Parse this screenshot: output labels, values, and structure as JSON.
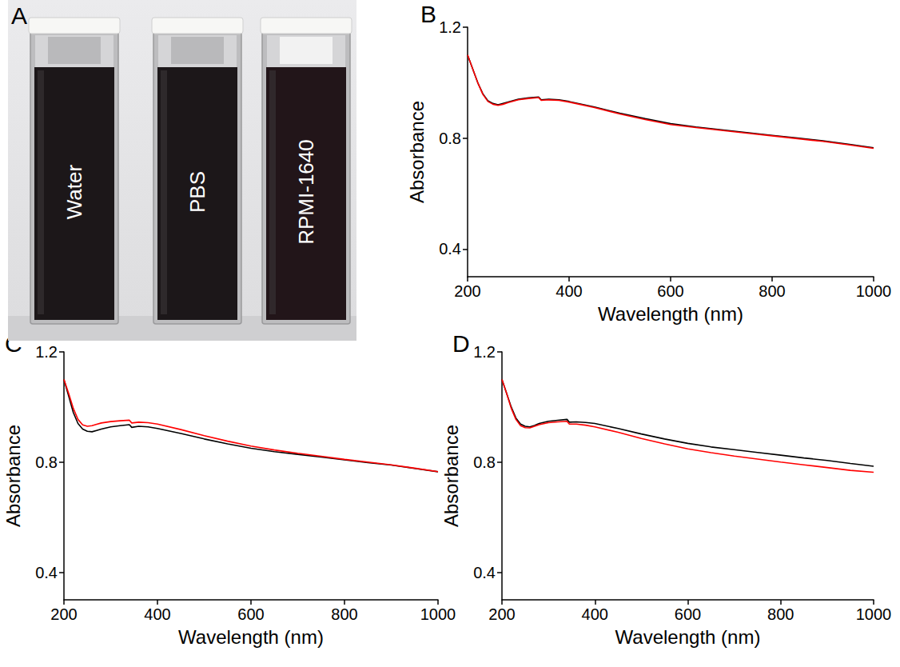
{
  "photo": {
    "panel_label": "A",
    "labels": [
      "Water",
      "PBS",
      "RPMI-1640"
    ]
  },
  "chart_data": [
    {
      "panel_label": "B",
      "type": "line",
      "x_label": "Wavelength (nm)",
      "y_label": "Absorbance",
      "x": [
        200,
        210,
        220,
        230,
        240,
        250,
        260,
        270,
        280,
        300,
        320,
        340,
        345,
        360,
        380,
        400,
        450,
        500,
        550,
        600,
        650,
        700,
        750,
        800,
        850,
        900,
        950,
        1000
      ],
      "xlim": [
        200,
        1000
      ],
      "xticks": [
        200,
        400,
        600,
        800,
        1000
      ],
      "ylim": [
        0.3,
        1.2
      ],
      "yticks": [
        0.4,
        0.8,
        1.2
      ],
      "grid": false,
      "series": [
        {
          "color": "#000000",
          "values": [
            1.1,
            1.05,
            1.0,
            0.96,
            0.935,
            0.925,
            0.92,
            0.925,
            0.93,
            0.94,
            0.945,
            0.948,
            0.938,
            0.94,
            0.938,
            0.932,
            0.912,
            0.89,
            0.87,
            0.852,
            0.84,
            0.83,
            0.82,
            0.81,
            0.8,
            0.79,
            0.778,
            0.765
          ]
        },
        {
          "color": "#ff0000",
          "values": [
            1.1,
            1.05,
            1.0,
            0.958,
            0.932,
            0.922,
            0.918,
            0.922,
            0.928,
            0.938,
            0.943,
            0.946,
            0.936,
            0.938,
            0.936,
            0.93,
            0.91,
            0.887,
            0.867,
            0.849,
            0.838,
            0.828,
            0.818,
            0.808,
            0.798,
            0.788,
            0.776,
            0.763
          ]
        }
      ]
    },
    {
      "panel_label": "C",
      "type": "line",
      "x_label": "Wavelength (nm)",
      "y_label": "Absorbance",
      "x": [
        200,
        210,
        220,
        230,
        240,
        250,
        260,
        270,
        280,
        300,
        320,
        340,
        345,
        360,
        380,
        400,
        450,
        500,
        550,
        600,
        650,
        700,
        750,
        800,
        850,
        900,
        950,
        1000
      ],
      "xlim": [
        200,
        1000
      ],
      "xticks": [
        200,
        400,
        600,
        800,
        1000
      ],
      "ylim": [
        0.3,
        1.2
      ],
      "yticks": [
        0.4,
        0.8,
        1.2
      ],
      "grid": false,
      "series": [
        {
          "color": "#000000",
          "values": [
            1.1,
            1.04,
            0.98,
            0.94,
            0.92,
            0.912,
            0.91,
            0.915,
            0.92,
            0.928,
            0.932,
            0.936,
            0.926,
            0.93,
            0.928,
            0.922,
            0.904,
            0.884,
            0.866,
            0.85,
            0.838,
            0.828,
            0.818,
            0.808,
            0.798,
            0.789,
            0.777,
            0.765
          ]
        },
        {
          "color": "#ff0000",
          "values": [
            1.1,
            1.05,
            0.995,
            0.955,
            0.935,
            0.93,
            0.932,
            0.937,
            0.942,
            0.947,
            0.95,
            0.952,
            0.942,
            0.945,
            0.943,
            0.938,
            0.918,
            0.896,
            0.876,
            0.858,
            0.844,
            0.832,
            0.821,
            0.81,
            0.8,
            0.79,
            0.778,
            0.765
          ]
        }
      ]
    },
    {
      "panel_label": "D",
      "type": "line",
      "x_label": "Wavelength (nm)",
      "y_label": "Absorbance",
      "x": [
        200,
        210,
        220,
        230,
        240,
        250,
        260,
        270,
        280,
        300,
        320,
        340,
        345,
        360,
        380,
        400,
        450,
        500,
        550,
        600,
        650,
        700,
        750,
        800,
        850,
        900,
        950,
        1000
      ],
      "xlim": [
        200,
        1000
      ],
      "xticks": [
        200,
        400,
        600,
        800,
        1000
      ],
      "ylim": [
        0.3,
        1.2
      ],
      "yticks": [
        0.4,
        0.8,
        1.2
      ],
      "grid": false,
      "series": [
        {
          "color": "#000000",
          "values": [
            1.1,
            1.05,
            1.0,
            0.96,
            0.938,
            0.93,
            0.928,
            0.933,
            0.94,
            0.948,
            0.952,
            0.955,
            0.945,
            0.946,
            0.944,
            0.94,
            0.922,
            0.902,
            0.884,
            0.868,
            0.855,
            0.845,
            0.835,
            0.825,
            0.815,
            0.806,
            0.795,
            0.785
          ]
        },
        {
          "color": "#ff0000",
          "values": [
            1.1,
            1.05,
            0.995,
            0.955,
            0.932,
            0.925,
            0.924,
            0.93,
            0.936,
            0.943,
            0.946,
            0.948,
            0.938,
            0.938,
            0.934,
            0.928,
            0.908,
            0.886,
            0.866,
            0.848,
            0.834,
            0.822,
            0.811,
            0.8,
            0.79,
            0.78,
            0.77,
            0.763
          ]
        }
      ]
    }
  ]
}
